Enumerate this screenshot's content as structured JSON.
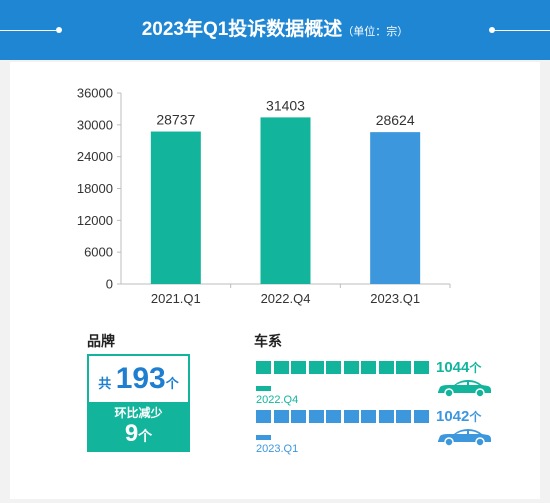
{
  "header": {
    "title": "2023年Q1投诉数据概述",
    "unit": "（单位：宗）"
  },
  "colors": {
    "header": "#1f86d4",
    "teal": "#12b59c",
    "blue": "#3d97dd",
    "text_blue": "#1e7fd0"
  },
  "chart_data": {
    "type": "bar",
    "categories": [
      "2021.Q1",
      "2022.Q4",
      "2023.Q1"
    ],
    "values": [
      28737,
      31403,
      28624
    ],
    "bar_colors": [
      "#12b59c",
      "#12b59c",
      "#3d97dd"
    ],
    "ylim": [
      0,
      36000
    ],
    "yticks": [
      0,
      6000,
      12000,
      18000,
      24000,
      30000,
      36000
    ],
    "data_labels": [
      "28737",
      "31403",
      "28624"
    ],
    "title": "",
    "xlabel": "",
    "ylabel": ""
  },
  "brand": {
    "section_title": "品牌",
    "prefix": "共",
    "total": "193",
    "unit": "个",
    "change_label": "环比减少",
    "change_value": "9",
    "change_unit": "个"
  },
  "series": {
    "section_title": "车系",
    "rows": [
      {
        "period": "2022.Q4",
        "count": "1044",
        "unit": "个",
        "color": "#12b59c",
        "icon": "car-icon"
      },
      {
        "period": "2023.Q1",
        "count": "1042",
        "unit": "个",
        "color": "#3d97dd",
        "icon": "car-icon"
      }
    ]
  }
}
